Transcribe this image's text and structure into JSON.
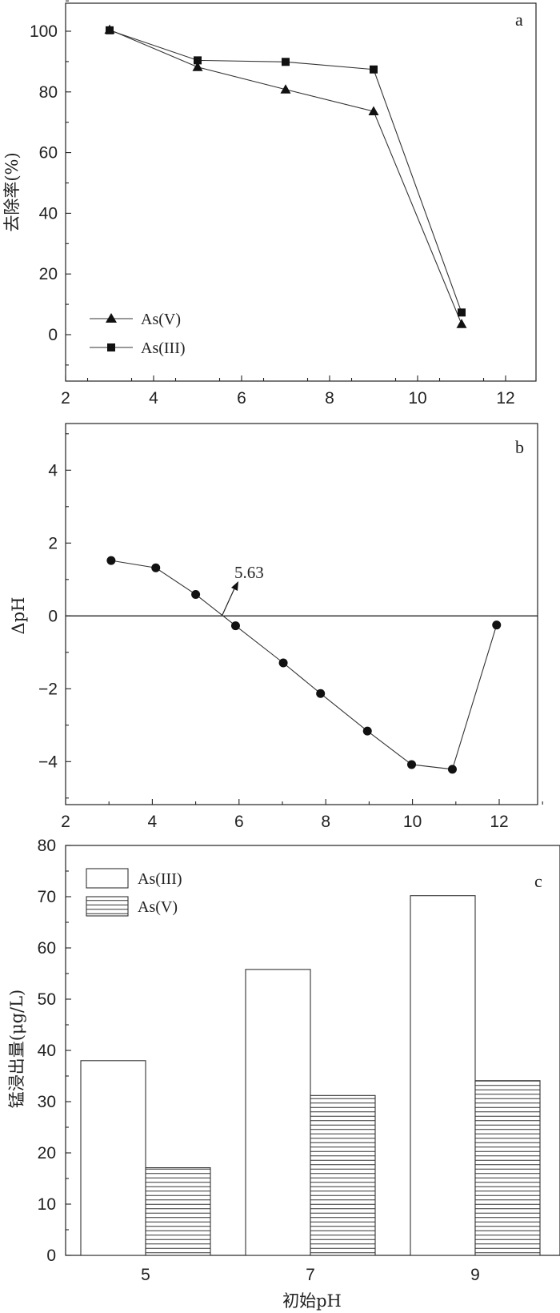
{
  "chart_data": [
    {
      "type": "line",
      "panel_label": "a",
      "xlabel": "",
      "ylabel": "去除率(%)",
      "xlim": [
        2,
        12
      ],
      "ylim": [
        -10,
        110
      ],
      "xticks": [
        2,
        4,
        6,
        8,
        10,
        12
      ],
      "yticks": [
        0,
        20,
        40,
        60,
        80,
        100
      ],
      "legend_position": "bottom-left",
      "series": [
        {
          "name": "As(V)",
          "marker": "triangle",
          "x": [
            3,
            5,
            7,
            9,
            11
          ],
          "y": [
            100.5,
            88.2,
            80.8,
            73.6,
            3.5
          ]
        },
        {
          "name": "As(III)",
          "marker": "square",
          "x": [
            3,
            5,
            7,
            9,
            11
          ],
          "y": [
            100.3,
            90.4,
            89.9,
            87.4,
            7.3
          ]
        }
      ]
    },
    {
      "type": "line",
      "panel_label": "b",
      "xlabel": "",
      "ylabel": "ΔpH",
      "xlim": [
        2,
        13
      ],
      "ylim": [
        -5,
        5
      ],
      "xticks": [
        2,
        4,
        6,
        8,
        10,
        12
      ],
      "yticks": [
        -4,
        -2,
        0,
        2,
        4
      ],
      "ytick_labels": [
        "−4",
        "−2",
        "0",
        "2",
        "4"
      ],
      "reference_line_y": 0,
      "annotation": {
        "text": "5.63",
        "x": 5.63,
        "y": 0
      },
      "series": [
        {
          "name": "",
          "marker": "circle",
          "x": [
            3.05,
            4.08,
            5.0,
            5.92,
            7.02,
            7.88,
            8.96,
            9.98,
            10.92,
            11.94
          ],
          "y": [
            1.52,
            1.32,
            0.59,
            -0.27,
            -1.29,
            -2.13,
            -3.16,
            -4.08,
            -4.21,
            -0.25
          ]
        }
      ]
    },
    {
      "type": "bar",
      "panel_label": "c",
      "xlabel": "初始pH",
      "ylabel": "锰浸出量(μg/L)",
      "categories": [
        "5",
        "7",
        "9"
      ],
      "ylim": [
        0,
        80
      ],
      "yticks": [
        0,
        10,
        20,
        30,
        40,
        50,
        60,
        70,
        80
      ],
      "legend_position": "top-left",
      "series": [
        {
          "name": "As(III)",
          "pattern": "open",
          "values": [
            38.0,
            55.8,
            70.2
          ]
        },
        {
          "name": "As(V)",
          "pattern": "horizontal-lines",
          "values": [
            17.1,
            31.2,
            34.1
          ]
        }
      ]
    }
  ]
}
